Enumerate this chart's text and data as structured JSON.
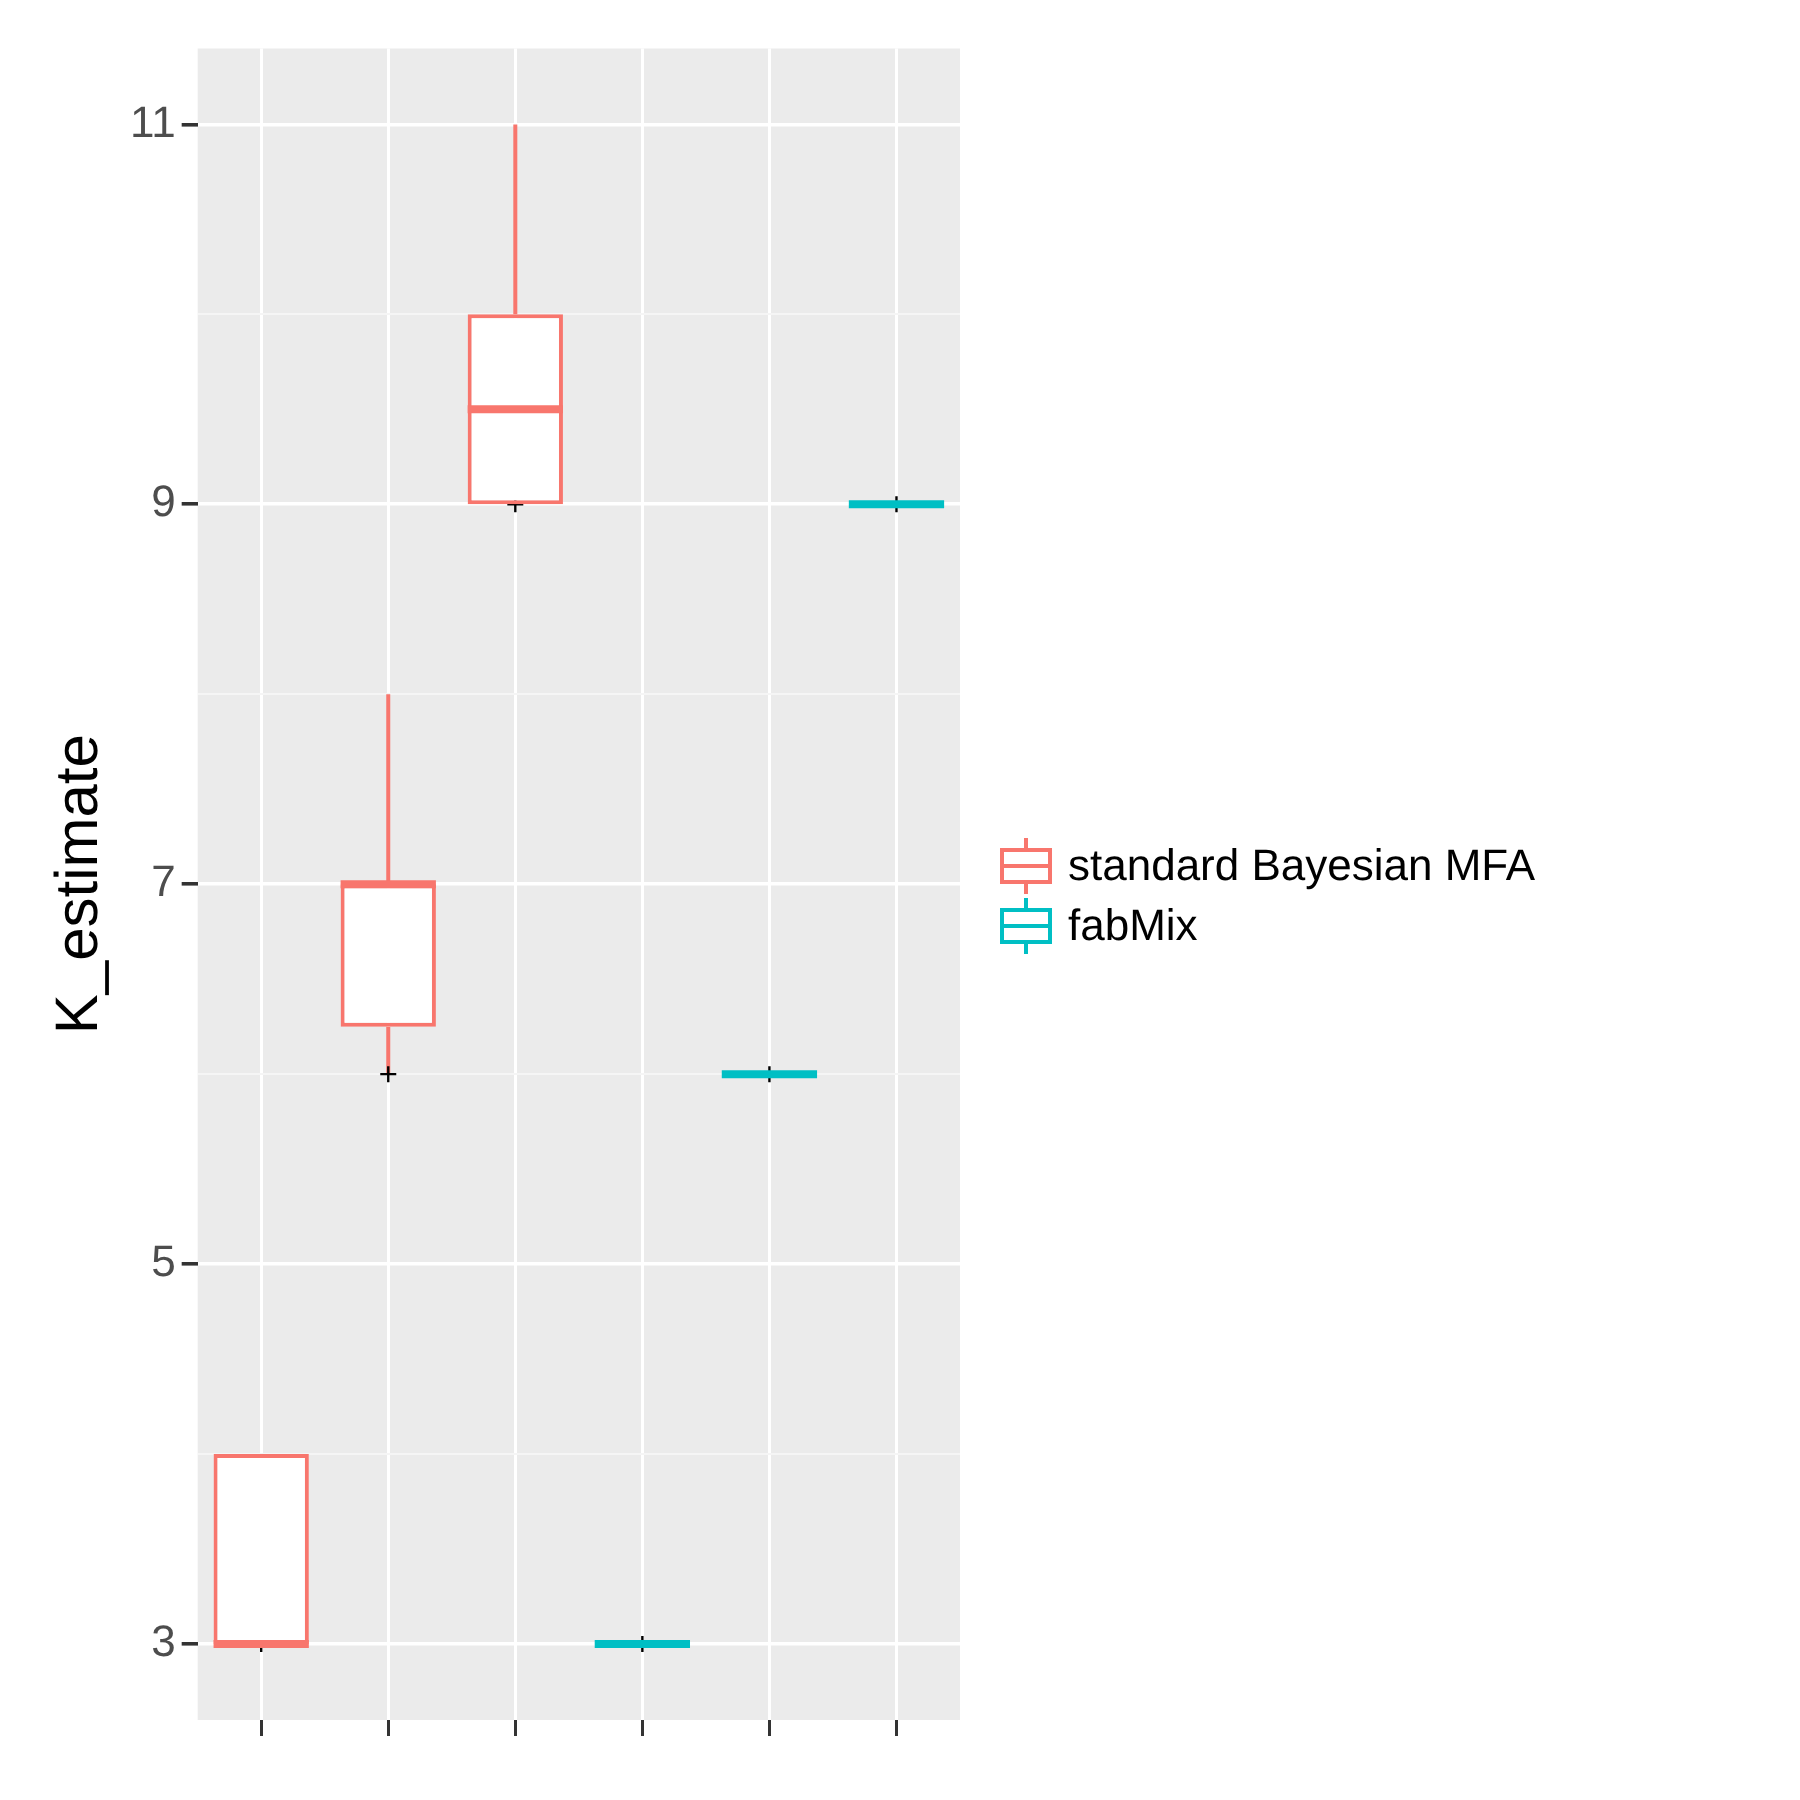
{
  "chart_data": {
    "type": "box",
    "ylabel": "K_estimate",
    "categories": [
      null,
      null,
      null,
      null,
      null,
      null
    ],
    "series": [
      {
        "name": "standard Bayesian MFA",
        "color": "#f8766d",
        "boxes": [
          {
            "low": 3,
            "q1": 3,
            "median": 3,
            "q3": 4,
            "high": 4,
            "mean": 3
          },
          {
            "low": 6,
            "q1": 6.25,
            "median": 7,
            "q3": 7,
            "high": 8,
            "mean": 6
          },
          {
            "low": 9,
            "q1": 9,
            "median": 9.5,
            "q3": 10,
            "high": 11,
            "mean": 9
          },
          null,
          null,
          null
        ]
      },
      {
        "name": "fabMix",
        "color": "#00bfc4",
        "boxes": [
          null,
          null,
          null,
          {
            "low": 3,
            "q1": 3,
            "median": 3,
            "q3": 3,
            "high": 3,
            "mean": 3
          },
          {
            "low": 6,
            "q1": 6,
            "median": 6,
            "q3": 6,
            "high": 6,
            "mean": 6
          },
          {
            "low": 9,
            "q1": 9,
            "median": 9,
            "q3": 9,
            "high": 9,
            "mean": 9
          }
        ]
      }
    ],
    "ylim": [
      2.6,
      11.4
    ],
    "yticks": [
      3,
      {
        "value": 4,
        "label": null
      },
      5,
      {
        "value": 6,
        "label": null
      },
      7,
      {
        "value": 8,
        "label": null
      },
      9,
      {
        "value": 10,
        "label": null
      },
      11
    ],
    "grid": true,
    "legend": "right",
    "tick_labels": "y"
  }
}
